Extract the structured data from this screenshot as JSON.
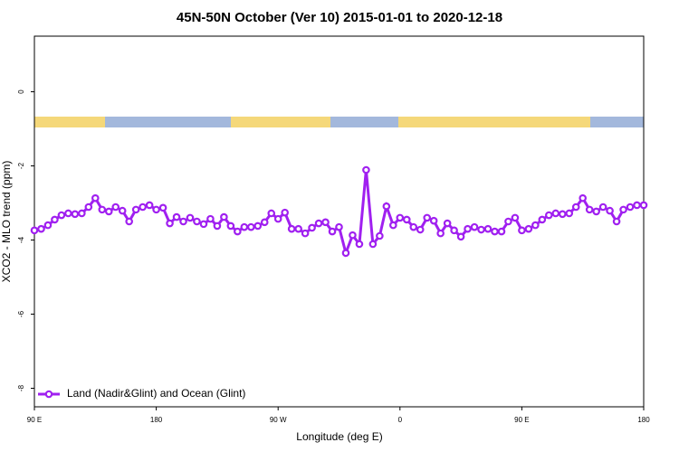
{
  "chart_data": {
    "type": "line",
    "title": "45N-50N October (Ver 10)   2015-01-01 to 2020-12-18",
    "x_label": "Longitude (deg E)",
    "y_label": "XCO2 - MLO trend (ppm)",
    "x": [
      90,
      95,
      100,
      105,
      110,
      115,
      120,
      125,
      130,
      135,
      140,
      145,
      150,
      155,
      160,
      165,
      170,
      175,
      180,
      185,
      190,
      195,
      200,
      205,
      210,
      215,
      220,
      225,
      230,
      235,
      240,
      245,
      250,
      255,
      260,
      265,
      270,
      275,
      280,
      285,
      290,
      295,
      300,
      305,
      310,
      315,
      320,
      325,
      330,
      335,
      340,
      345,
      350,
      355,
      360,
      365,
      370,
      375,
      380,
      385,
      390,
      395,
      400,
      405,
      410,
      415,
      420,
      425,
      430,
      435,
      440,
      445,
      450,
      455,
      460,
      465,
      470,
      475,
      480,
      485,
      490,
      495,
      500,
      505,
      510,
      515,
      520,
      525,
      530,
      535,
      540
    ],
    "series": [
      {
        "name": "Land (Nadir&Glint) and Ocean (Glint)",
        "color": "#a020f0",
        "values": [
          -3.74,
          -3.7,
          -3.6,
          -3.45,
          -3.33,
          -3.28,
          -3.3,
          -3.28,
          -3.11,
          -2.87,
          -3.18,
          -3.23,
          -3.11,
          -3.21,
          -3.5,
          -3.18,
          -3.11,
          -3.06,
          -3.18,
          -3.13,
          -3.55,
          -3.38,
          -3.5,
          -3.4,
          -3.5,
          -3.57,
          -3.43,
          -3.62,
          -3.38,
          -3.62,
          -3.77,
          -3.65,
          -3.65,
          -3.62,
          -3.52,
          -3.28,
          -3.43,
          -3.26,
          -3.7,
          -3.7,
          -3.82,
          -3.67,
          -3.55,
          -3.52,
          -3.77,
          -3.65,
          -4.35,
          -3.87,
          -4.11,
          -2.11,
          -4.11,
          -3.89,
          -3.09,
          -3.6,
          -3.4,
          -3.45,
          -3.65,
          -3.72,
          -3.4,
          -3.48,
          -3.82,
          -3.55,
          -3.74,
          -3.91,
          -3.7,
          -3.65,
          -3.72,
          -3.7,
          -3.77,
          -3.77,
          -3.5,
          -3.4,
          -3.74,
          -3.7,
          -3.6,
          -3.45,
          -3.33,
          -3.28,
          -3.3,
          -3.28,
          -3.11,
          -2.87,
          -3.18,
          -3.23,
          -3.11,
          -3.21,
          -3.5,
          -3.18,
          -3.11,
          -3.06,
          -3.06
        ]
      }
    ],
    "xlim": [
      90,
      540
    ],
    "xticks": [
      {
        "value": 90,
        "label": "90 E"
      },
      180,
      {
        "value": 270,
        "label": "90 W"
      },
      {
        "value": 360,
        "label": "0"
      },
      {
        "value": 450,
        "label": "90 E"
      },
      {
        "value": 540,
        "label": "180"
      }
    ],
    "ylim": [
      -8.5,
      1.5
    ],
    "yticks": [
      0,
      -2,
      -4,
      -6,
      -8
    ],
    "legend_position": "bottom-left"
  }
}
